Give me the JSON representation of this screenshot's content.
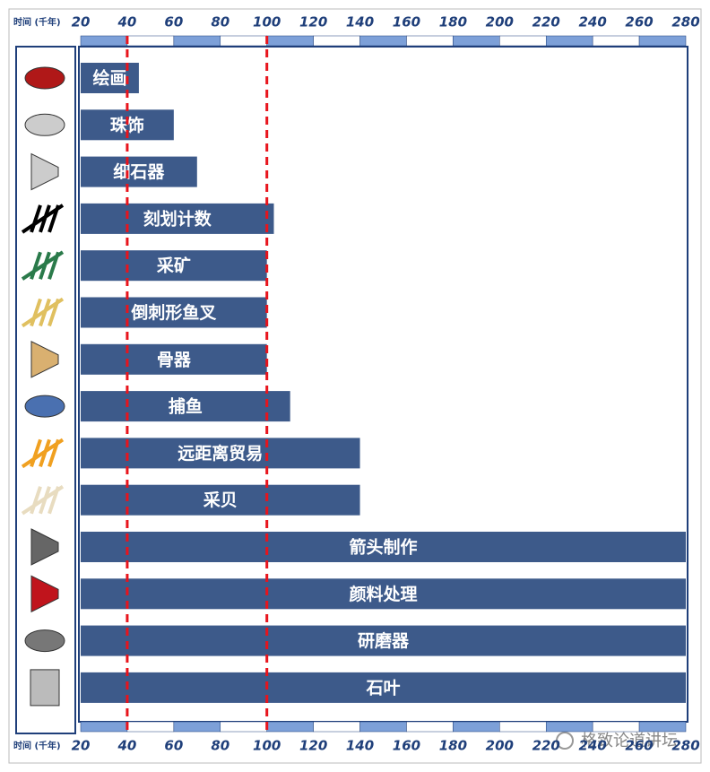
{
  "chart_data": {
    "type": "bar",
    "orientation": "horizontal",
    "xlabel": "时间 (千年)",
    "categories": [
      "绘画",
      "珠饰",
      "细石器",
      "刻划计数",
      "采矿",
      "倒刺形鱼叉",
      "骨器",
      "捕鱼",
      "远距离贸易",
      "采贝",
      "箭头制作",
      "颜料处理",
      "研磨器",
      "石叶"
    ],
    "values": [
      45,
      60,
      70,
      103,
      100,
      100,
      100,
      110,
      140,
      140,
      280,
      280,
      280,
      280
    ],
    "color": "#3d5a8a",
    "xlim": [
      20,
      280
    ],
    "xticks": [
      20,
      40,
      60,
      80,
      100,
      120,
      140,
      160,
      180,
      200,
      220,
      240,
      260,
      280
    ],
    "reference_lines": [
      40,
      100
    ],
    "reference_color": "#e8141c",
    "watermark": "格致论道讲坛"
  }
}
